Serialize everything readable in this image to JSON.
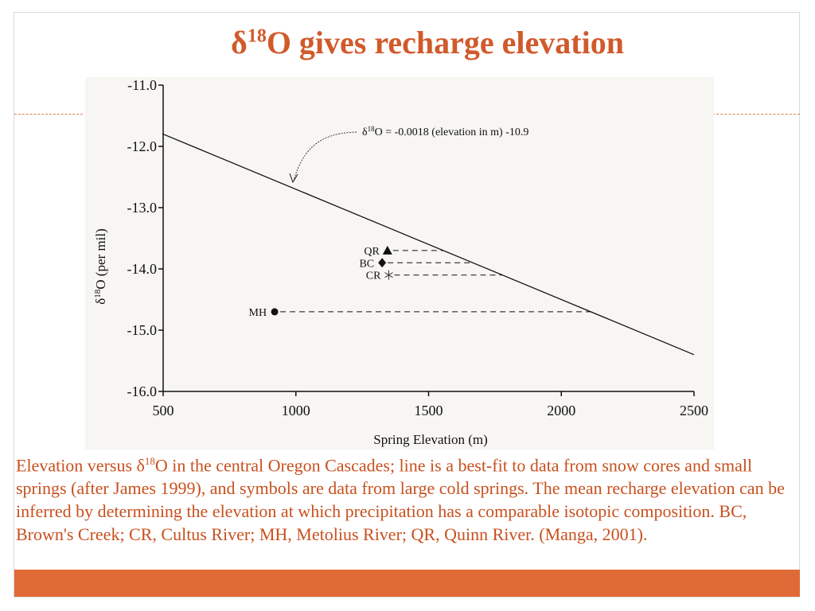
{
  "slide": {
    "title_delta": "δ",
    "title_sup": "18",
    "title_rest": "O gives recharge elevation",
    "caption_pre": "Elevation versus δ",
    "caption_sup": "18",
    "caption_post": "O in the central Oregon Cascades; line is a best-fit to data from snow cores and small springs (after James 1999), and symbols are data from large cold springs. The mean recharge elevation can be inferred by determining the elevation at which precipitation has a comparable isotopic composition. BC, Brown's Creek; CR, Cultus River; MH, Metolius River; QR, Quinn River. (Manga, 2001).",
    "accent_color": "#d15a2b",
    "bar_color": "#e06a36"
  },
  "chart_data": {
    "type": "scatter",
    "xlabel": "Spring Elevation (m)",
    "ylabel_delta": "δ",
    "ylabel_sup": "18",
    "ylabel_rest": "O (per mil)",
    "xlim": [
      500,
      2500
    ],
    "ylim": [
      -16.0,
      -11.0
    ],
    "x_ticks": [
      "500",
      "1000",
      "1500",
      "2000",
      "2500"
    ],
    "y_ticks": [
      "-11.0",
      "-12.0",
      "-13.0",
      "-14.0",
      "-15.0",
      "-16.0"
    ],
    "grid": false,
    "fit_line": {
      "slope": -0.0018,
      "intercept": -10.9
    },
    "equation_pre": "δ",
    "equation_sup": "18",
    "equation_rest": "O = -0.0018 (elevation in m) -10.9",
    "points": [
      {
        "label": "QR",
        "x": 1345,
        "y": -13.7,
        "marker": "triangle"
      },
      {
        "label": "BC",
        "x": 1325,
        "y": -13.9,
        "marker": "diamond"
      },
      {
        "label": "CR",
        "x": 1350,
        "y": -14.1,
        "marker": "asterisk"
      },
      {
        "label": "MH",
        "x": 920,
        "y": -14.7,
        "marker": "circle"
      }
    ]
  }
}
